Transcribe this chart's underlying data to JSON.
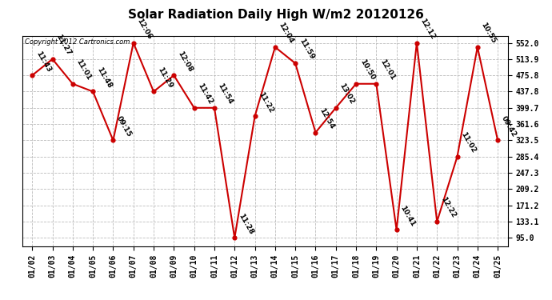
{
  "title": "Solar Radiation Daily High W/m2 20120126",
  "copyright_text": "Copyright 2012 Cartronics.com",
  "dates": [
    "01/02",
    "01/03",
    "01/04",
    "01/05",
    "01/06",
    "01/07",
    "01/08",
    "01/09",
    "01/10",
    "01/11",
    "01/12",
    "01/13",
    "01/14",
    "01/15",
    "01/16",
    "01/17",
    "01/18",
    "01/19",
    "01/20",
    "01/21",
    "01/22",
    "01/23",
    "01/24",
    "01/25"
  ],
  "values": [
    475.8,
    513.9,
    456.0,
    437.8,
    323.5,
    552.0,
    437.8,
    475.8,
    399.7,
    399.7,
    95.0,
    380.0,
    542.0,
    504.0,
    342.0,
    399.7,
    456.0,
    456.0,
    114.0,
    552.0,
    133.1,
    285.4,
    542.0,
    323.5
  ],
  "labels": [
    "11:43",
    "11:27",
    "11:01",
    "11:48",
    "09:15",
    "12:06",
    "11:29",
    "12:08",
    "11:42",
    "11:54",
    "11:28",
    "11:22",
    "12:04",
    "11:59",
    "12:54",
    "13:02",
    "10:50",
    "12:01",
    "10:41",
    "12:12",
    "12:22",
    "11:02",
    "10:55",
    "09:42"
  ],
  "line_color": "#cc0000",
  "marker_color": "#cc0000",
  "bg_color": "#ffffff",
  "grid_color": "#bbbbbb",
  "yticks": [
    95.0,
    133.1,
    171.2,
    209.2,
    247.3,
    285.4,
    323.5,
    361.6,
    399.7,
    437.8,
    475.8,
    513.9,
    552.0
  ],
  "ylim": [
    76.0,
    568.0
  ],
  "title_fontsize": 11,
  "label_fontsize": 6.5,
  "tick_fontsize": 7.0
}
